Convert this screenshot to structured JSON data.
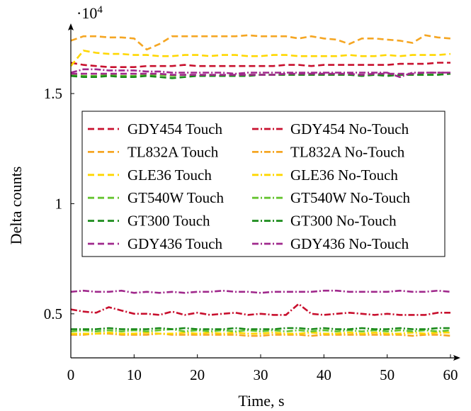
{
  "chart_data": {
    "type": "line",
    "xlabel": "Time, s",
    "ylabel": "Delta counts",
    "y_multiplier_label": "·10",
    "y_multiplier_exp": "4",
    "xlim": [
      0,
      60
    ],
    "ylim": [
      3000,
      17800
    ],
    "x_ticks": [
      0,
      10,
      20,
      30,
      40,
      50,
      60
    ],
    "x_tick_labels": [
      "0",
      "10",
      "20",
      "30",
      "40",
      "50",
      "60"
    ],
    "y_ticks": [
      5000,
      10000,
      15000
    ],
    "y_tick_labels": [
      "0.5",
      "1",
      "1.5"
    ],
    "legend_position": "center",
    "x": [
      0,
      2,
      4,
      6,
      8,
      10,
      12,
      14,
      16,
      18,
      20,
      22,
      24,
      26,
      28,
      30,
      32,
      34,
      36,
      38,
      40,
      42,
      44,
      46,
      48,
      50,
      52,
      54,
      56,
      58,
      60
    ],
    "series": [
      {
        "name": "GDY454 Touch",
        "color": "#c8102e",
        "dash": "dash",
        "values": [
          16400,
          16300,
          16250,
          16200,
          16200,
          16200,
          16250,
          16250,
          16250,
          16300,
          16250,
          16250,
          16250,
          16250,
          16250,
          16250,
          16250,
          16300,
          16300,
          16250,
          16300,
          16300,
          16300,
          16300,
          16300,
          16300,
          16350,
          16350,
          16350,
          16400,
          16400
        ]
      },
      {
        "name": "GDY454 No-Touch",
        "color": "#c8102e",
        "dash": "dashdot",
        "values": [
          5200,
          5100,
          5050,
          5300,
          5150,
          5000,
          5000,
          4950,
          5100,
          4950,
          5050,
          4950,
          5000,
          5050,
          4950,
          5000,
          4950,
          4950,
          5450,
          5000,
          4950,
          5000,
          5050,
          5000,
          4950,
          5000,
          4950,
          4950,
          4950,
          5050,
          5050
        ]
      },
      {
        "name": "TL832A Touch",
        "color": "#f5a623",
        "dash": "dash",
        "values": [
          17400,
          17600,
          17600,
          17550,
          17550,
          17500,
          17000,
          17250,
          17600,
          17600,
          17600,
          17600,
          17600,
          17600,
          17650,
          17600,
          17600,
          17600,
          17500,
          17600,
          17500,
          17450,
          17250,
          17500,
          17500,
          17450,
          17400,
          17300,
          17650,
          17550,
          17500
        ]
      },
      {
        "name": "TL832A No-Touch",
        "color": "#f5a623",
        "dash": "dashdot",
        "values": [
          4050,
          4050,
          4100,
          4100,
          4050,
          4050,
          4050,
          4100,
          4050,
          4050,
          4050,
          4050,
          4050,
          4050,
          4000,
          4000,
          4050,
          4050,
          4050,
          4000,
          4050,
          4050,
          4050,
          4050,
          4050,
          4050,
          4050,
          4000,
          4050,
          4050,
          4000
        ]
      },
      {
        "name": "GLE36 Touch",
        "color": "#ffd700",
        "dash": "dash",
        "values": [
          16250,
          16950,
          16850,
          16800,
          16800,
          16750,
          16750,
          16700,
          16700,
          16750,
          16750,
          16700,
          16750,
          16750,
          16700,
          16700,
          16750,
          16750,
          16700,
          16700,
          16700,
          16700,
          16750,
          16700,
          16700,
          16750,
          16700,
          16750,
          16750,
          16750,
          16800
        ]
      },
      {
        "name": "GLE36 No-Touch",
        "color": "#ffd700",
        "dash": "dashdot",
        "values": [
          4100,
          4100,
          4100,
          4150,
          4100,
          4100,
          4150,
          4100,
          4100,
          4150,
          4100,
          4150,
          4100,
          4150,
          4100,
          4100,
          4150,
          4100,
          4100,
          4150,
          4100,
          4100,
          4150,
          4100,
          4150,
          4100,
          4100,
          4150,
          4100,
          4150,
          4150
        ]
      },
      {
        "name": "GT540W Touch",
        "color": "#66c430",
        "dash": "dash",
        "values": [
          15850,
          15800,
          15800,
          15850,
          15800,
          15800,
          15850,
          15850,
          15800,
          15850,
          15800,
          15850,
          15800,
          15850,
          15850,
          15850,
          15850,
          15850,
          15850,
          15850,
          15850,
          15850,
          15850,
          15850,
          15850,
          15850,
          15850,
          15850,
          15850,
          15850,
          15900
        ]
      },
      {
        "name": "GT540W No-Touch",
        "color": "#66c430",
        "dash": "dashdot",
        "values": [
          4200,
          4250,
          4200,
          4250,
          4200,
          4250,
          4200,
          4250,
          4300,
          4200,
          4250,
          4200,
          4250,
          4200,
          4250,
          4200,
          4250,
          4200,
          4250,
          4200,
          4250,
          4200,
          4250,
          4200,
          4250,
          4200,
          4250,
          4200,
          4250,
          4200,
          4250
        ]
      },
      {
        "name": "GT300 Touch",
        "color": "#1a8a1a",
        "dash": "dash",
        "values": [
          15800,
          15750,
          15750,
          15800,
          15750,
          15750,
          15800,
          15750,
          15700,
          15750,
          15800,
          15800,
          15800,
          15800,
          15800,
          15850,
          15850,
          15850,
          15850,
          15850,
          15850,
          15850,
          15850,
          15800,
          15850,
          15800,
          15850,
          15850,
          15850,
          15850,
          15900
        ]
      },
      {
        "name": "GT300 No-Touch",
        "color": "#1a8a1a",
        "dash": "dashdot",
        "values": [
          4300,
          4300,
          4300,
          4350,
          4300,
          4300,
          4300,
          4350,
          4300,
          4350,
          4300,
          4300,
          4300,
          4350,
          4300,
          4300,
          4300,
          4350,
          4350,
          4300,
          4350,
          4300,
          4300,
          4350,
          4300,
          4300,
          4350,
          4300,
          4300,
          4350,
          4350
        ]
      },
      {
        "name": "GDY436 Touch",
        "color": "#a0298c",
        "dash": "dash",
        "values": [
          15900,
          15900,
          15900,
          15900,
          15900,
          15900,
          15900,
          15900,
          15850,
          15850,
          15850,
          15850,
          15850,
          15850,
          15850,
          15850,
          15850,
          15900,
          15900,
          15900,
          15900,
          15900,
          15900,
          15850,
          15900,
          15900,
          15900,
          15900,
          15950,
          15950,
          15950
        ]
      },
      {
        "name": "GDY436 No-Touch",
        "color": "#a0298c",
        "dash": "dashdot",
        "values": [
          15950,
          16100,
          16100,
          16050,
          16050,
          16050,
          16000,
          16000,
          15950,
          15950,
          15950,
          15950,
          15950,
          15900,
          15950,
          15950,
          15950,
          15950,
          15950,
          15950,
          15950,
          15950,
          15950,
          15950,
          15950,
          15950,
          15750,
          15950,
          15950,
          15950,
          15950
        ]
      }
    ],
    "second_band_dashdot_note_removed": "",
    "gdy436_notouch_low": [
      6000,
      6050,
      6000,
      6000,
      6050,
      5950,
      6000,
      5950,
      6000,
      5950,
      6000,
      6000,
      6050,
      6000,
      6000,
      5950,
      6000,
      6000,
      6000,
      6000,
      6050,
      6050,
      6000,
      6000,
      6000,
      6000,
      6050,
      6000,
      6000,
      6050,
      6000
    ]
  }
}
